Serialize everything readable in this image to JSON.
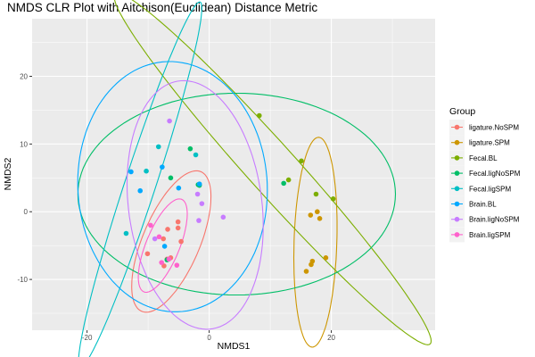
{
  "chart_data": {
    "type": "scatter",
    "title": "NMDS CLR Plot with Aitchison(Euclidean) Distance Metric",
    "xlabel": "NMDS1",
    "ylabel": "NMDS2",
    "xlim": [
      -29,
      37
    ],
    "ylim": [
      -17.5,
      28.5
    ],
    "xticks": [
      -20,
      0,
      20
    ],
    "yticks": [
      -10,
      0,
      10,
      20
    ],
    "grid": true,
    "legend": {
      "title": "Group",
      "position": "right"
    },
    "series": [
      {
        "name": "ligature.NoSPM",
        "color": "#F8766D",
        "points": [
          [
            -10.1,
            -6.2
          ],
          [
            -7.5,
            -4.0
          ],
          [
            -6.8,
            -2.6
          ],
          [
            -5.1,
            -1.5
          ],
          [
            -5.1,
            -2.4
          ],
          [
            -4.6,
            -4.4
          ],
          [
            -6.3,
            -6.8
          ],
          [
            -6.9,
            -7.0
          ],
          [
            -7.4,
            -8.0
          ]
        ],
        "ellipse": {
          "center": [
            -6.2,
            -4.4
          ],
          "rx": 11.4,
          "ry": 4.6,
          "angle": 64
        }
      },
      {
        "name": "ligature.SPM",
        "color": "#CD9600",
        "points": [
          [
            16.6,
            -0.5
          ],
          [
            17.7,
            0.0
          ],
          [
            18.1,
            -1.0
          ],
          [
            16.9,
            -7.3
          ],
          [
            16.7,
            -7.8
          ],
          [
            19.1,
            -6.8
          ],
          [
            15.9,
            -8.8
          ]
        ],
        "ellipse": {
          "center": [
            17.4,
            -4.5
          ],
          "rx": 15.5,
          "ry": 3.5,
          "angle": 88
        }
      },
      {
        "name": "Fecal.BL",
        "color": "#7CAE00",
        "points": [
          [
            8.2,
            14.2
          ],
          [
            13.0,
            4.7
          ],
          [
            15.1,
            7.5
          ],
          [
            17.5,
            2.6
          ],
          [
            20.3,
            1.9
          ]
        ],
        "ellipse": {
          "center": [
            10.4,
            6.3
          ],
          "rx": 36.5,
          "ry": 3.8,
          "angle": -45
        }
      },
      {
        "name": "Fecal.ligNoSPM",
        "color": "#00BE67",
        "points": [
          [
            -3.1,
            9.3
          ],
          [
            -6.3,
            5.0
          ],
          [
            -1.8,
            4.0
          ],
          [
            -1.6,
            3.9
          ],
          [
            12.2,
            4.2
          ],
          [
            -6.9,
            -7.1
          ]
        ],
        "ellipse": {
          "center": [
            4.5,
            2.6
          ],
          "rx": 26.0,
          "ry": 14.9,
          "angle": 0
        }
      },
      {
        "name": "Fecal.ligSPM",
        "color": "#00BFC4",
        "points": [
          [
            -8.3,
            9.6
          ],
          [
            -10.3,
            6.0
          ],
          [
            -2.2,
            8.4
          ],
          [
            -13.6,
            -3.2
          ]
        ],
        "ellipse": {
          "center": [
            -11.3,
            4.0
          ],
          "rx": 28.7,
          "ry": 2.5,
          "angle": 70
        }
      },
      {
        "name": "Brain.BL",
        "color": "#00A9FF",
        "points": [
          [
            -12.8,
            5.9
          ],
          [
            -11.3,
            3.1
          ],
          [
            -7.7,
            6.6
          ],
          [
            -5.0,
            3.5
          ],
          [
            -1.6,
            4.1
          ],
          [
            -7.3,
            -5.1
          ]
        ],
        "ellipse": {
          "center": [
            -6.0,
            3.7
          ],
          "rx": 18.5,
          "ry": 15.5,
          "angle": 95
        }
      },
      {
        "name": "Brain.ligNoSPM",
        "color": "#C77CFF",
        "points": [
          [
            -6.5,
            13.4
          ],
          [
            -1.9,
            2.6
          ],
          [
            -1.2,
            1.2
          ],
          [
            2.3,
            -0.8
          ],
          [
            -1.7,
            -1.3
          ],
          [
            -8.9,
            -4.0
          ]
        ],
        "ellipse": {
          "center": [
            -2.3,
            1.0
          ],
          "rx": 18.5,
          "ry": 10.9,
          "angle": 99
        }
      },
      {
        "name": "Brain.ligSPM",
        "color": "#FF61CC",
        "points": [
          [
            -9.6,
            -2.0
          ],
          [
            -8.2,
            -3.7
          ],
          [
            -7.8,
            -7.5
          ],
          [
            -6.6,
            -7.0
          ],
          [
            -5.3,
            -7.9
          ]
        ],
        "ellipse": {
          "center": [
            -7.6,
            -5.0
          ],
          "rx": 7.5,
          "ry": 2.7,
          "angle": 65
        }
      }
    ]
  }
}
